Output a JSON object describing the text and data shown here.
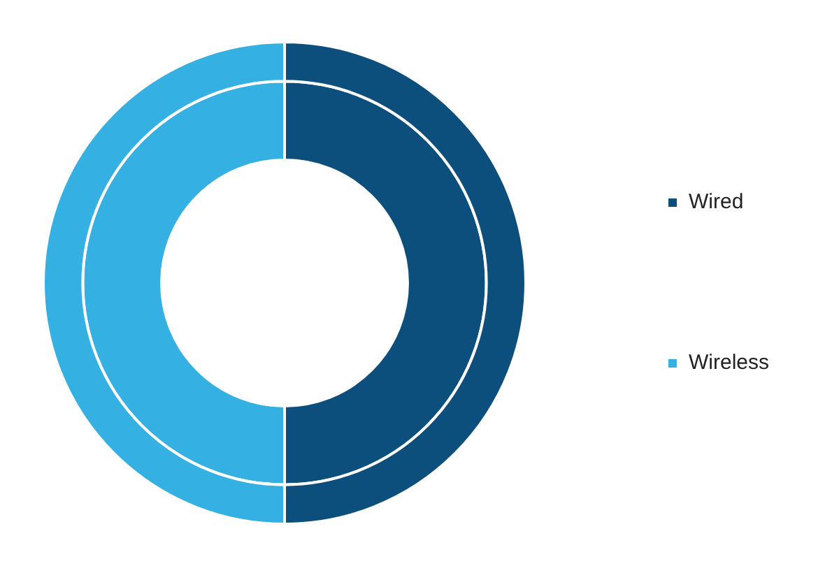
{
  "chart_data": {
    "type": "donut",
    "categories": [
      "Wired",
      "Wireless"
    ],
    "colors": [
      "#0c4f7c",
      "#35b0e3"
    ],
    "series": [
      {
        "values": [
          50,
          50
        ]
      },
      {
        "values": [
          50,
          50
        ]
      }
    ],
    "legend": "right"
  }
}
